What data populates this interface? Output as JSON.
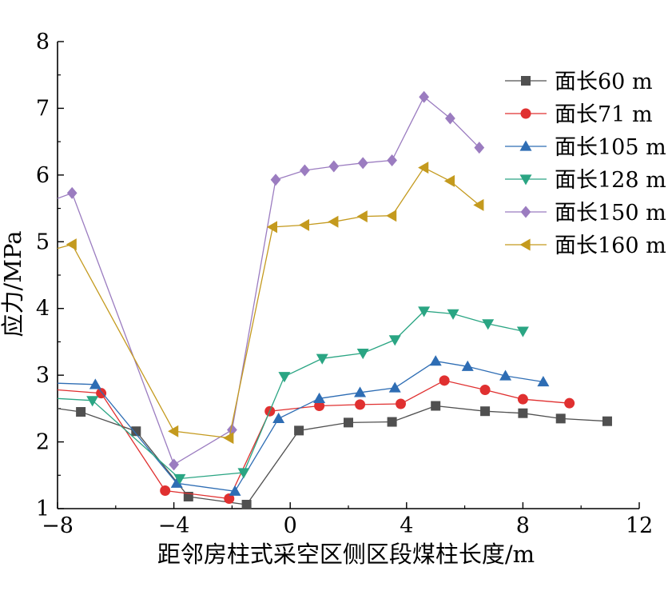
{
  "chart_data": {
    "type": "line",
    "xlabel": "距邻房柱式采空区侧区段煤柱长度/m",
    "ylabel": "应力/MPa",
    "xlim": [
      -8,
      12
    ],
    "ylim": [
      1,
      8
    ],
    "xticks": [
      "−8",
      "−4",
      "0",
      "4",
      "8",
      "12"
    ],
    "yticks": [
      "1",
      "2",
      "3",
      "4",
      "5",
      "6",
      "7",
      "8"
    ],
    "legend_position": "top-right",
    "grid": false,
    "series": [
      {
        "name": "面长60 m",
        "color": "#505050",
        "marker": "square",
        "points": [
          [
            -8.0,
            2.5
          ],
          [
            -7.2,
            2.45
          ],
          [
            -5.3,
            2.16
          ],
          [
            -3.5,
            1.18
          ],
          [
            -1.5,
            1.06
          ],
          [
            0.3,
            2.17
          ],
          [
            2.0,
            2.29
          ],
          [
            3.5,
            2.3
          ],
          [
            5.0,
            2.54
          ],
          [
            6.7,
            2.46
          ],
          [
            8.0,
            2.43
          ],
          [
            9.3,
            2.35
          ],
          [
            10.9,
            2.31
          ]
        ]
      },
      {
        "name": "面长71 m",
        "color": "#e03030",
        "marker": "circle",
        "points": [
          [
            -8.0,
            2.78
          ],
          [
            -6.5,
            2.73
          ],
          [
            -4.3,
            1.27
          ],
          [
            -2.1,
            1.15
          ],
          [
            -0.7,
            2.46
          ],
          [
            1.0,
            2.54
          ],
          [
            2.4,
            2.56
          ],
          [
            3.8,
            2.57
          ],
          [
            5.3,
            2.92
          ],
          [
            6.7,
            2.78
          ],
          [
            8.0,
            2.64
          ],
          [
            9.6,
            2.58
          ]
        ]
      },
      {
        "name": "面长105 m",
        "color": "#2e6db4",
        "marker": "triangle-up",
        "points": [
          [
            -8.0,
            2.88
          ],
          [
            -6.7,
            2.86
          ],
          [
            -3.9,
            1.38
          ],
          [
            -1.9,
            1.26
          ],
          [
            -0.4,
            2.35
          ],
          [
            1.0,
            2.65
          ],
          [
            2.4,
            2.74
          ],
          [
            3.6,
            2.81
          ],
          [
            5.0,
            3.21
          ],
          [
            6.1,
            3.13
          ],
          [
            7.4,
            2.99
          ],
          [
            8.7,
            2.9
          ]
        ]
      },
      {
        "name": "面长128 m",
        "color": "#2aa583",
        "marker": "triangle-down",
        "points": [
          [
            -8.0,
            2.65
          ],
          [
            -6.8,
            2.62
          ],
          [
            -3.8,
            1.45
          ],
          [
            -1.6,
            1.54
          ],
          [
            -0.2,
            2.98
          ],
          [
            1.1,
            3.25
          ],
          [
            2.5,
            3.33
          ],
          [
            3.6,
            3.53
          ],
          [
            4.6,
            3.96
          ],
          [
            5.6,
            3.92
          ],
          [
            6.8,
            3.77
          ],
          [
            8.0,
            3.66
          ]
        ]
      },
      {
        "name": "面长150 m",
        "color": "#9b7cc0",
        "marker": "diamond",
        "points": [
          [
            -8.0,
            5.65
          ],
          [
            -7.5,
            5.73
          ],
          [
            -4.0,
            1.66
          ],
          [
            -2.0,
            2.18
          ],
          [
            -0.5,
            5.93
          ],
          [
            0.5,
            6.07
          ],
          [
            1.5,
            6.13
          ],
          [
            2.5,
            6.18
          ],
          [
            3.5,
            6.22
          ],
          [
            4.6,
            7.17
          ],
          [
            5.5,
            6.85
          ],
          [
            6.5,
            6.41
          ]
        ]
      },
      {
        "name": "面长160 m",
        "color": "#c49a1e",
        "marker": "triangle-left",
        "points": [
          [
            -8.0,
            4.9
          ],
          [
            -7.5,
            4.96
          ],
          [
            -4.0,
            2.16
          ],
          [
            -2.1,
            2.06
          ],
          [
            -0.6,
            5.22
          ],
          [
            0.5,
            5.25
          ],
          [
            1.5,
            5.3
          ],
          [
            2.5,
            5.38
          ],
          [
            3.5,
            5.39
          ],
          [
            4.6,
            6.11
          ],
          [
            5.5,
            5.91
          ],
          [
            6.5,
            5.55
          ]
        ]
      }
    ]
  }
}
